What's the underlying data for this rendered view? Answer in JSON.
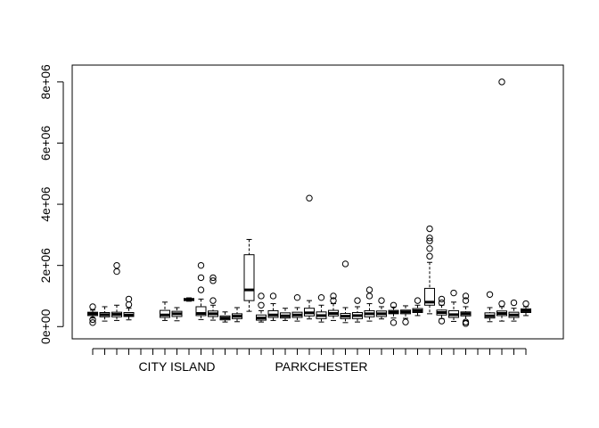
{
  "chart_data": {
    "type": "boxplot",
    "title": "",
    "xlabel": "",
    "ylabel": "",
    "ylim": [
      -400000,
      8550000
    ],
    "y_ticks": [
      0,
      2000000,
      4000000,
      6000000,
      8000000
    ],
    "y_tick_labels": [
      "0e+00",
      "2e+06",
      "4e+06",
      "6e+06",
      "8e+06"
    ],
    "x_tick_labels": [
      "CITY ISLAND",
      "PARKCHESTER"
    ],
    "x_tick_label_positions": [
      8,
      20
    ],
    "n_categories": 34,
    "boxes": [
      {
        "pos": 1,
        "min": 280000,
        "q1": 360000,
        "median": 420000,
        "q3": 470000,
        "max": 540000,
        "outliers": [
          650000,
          230000,
          130000
        ]
      },
      {
        "pos": 2,
        "min": 180000,
        "q1": 320000,
        "median": 390000,
        "q3": 460000,
        "max": 650000,
        "outliers": []
      },
      {
        "pos": 3,
        "min": 200000,
        "q1": 320000,
        "median": 400000,
        "q3": 470000,
        "max": 700000,
        "outliers": [
          1800000,
          2000000
        ]
      },
      {
        "pos": 4,
        "min": 220000,
        "q1": 330000,
        "median": 380000,
        "q3": 460000,
        "max": 600000,
        "outliers": [
          900000,
          720000
        ]
      },
      {
        "pos": 7,
        "min": 200000,
        "q1": 300000,
        "median": 380000,
        "q3": 530000,
        "max": 800000,
        "outliers": []
      },
      {
        "pos": 8,
        "min": 190000,
        "q1": 330000,
        "median": 420000,
        "q3": 500000,
        "max": 620000,
        "outliers": []
      },
      {
        "pos": 9,
        "min": 830000,
        "q1": 850000,
        "median": 880000,
        "q3": 920000,
        "max": 940000,
        "outliers": []
      },
      {
        "pos": 10,
        "min": 230000,
        "q1": 360000,
        "median": 430000,
        "q3": 650000,
        "max": 900000,
        "outliers": [
          1200000,
          1600000,
          2000000
        ]
      },
      {
        "pos": 11,
        "min": 210000,
        "q1": 330000,
        "median": 420000,
        "q3": 510000,
        "max": 700000,
        "outliers": [
          850000,
          1500000,
          1600000
        ]
      },
      {
        "pos": 12,
        "min": 150000,
        "q1": 220000,
        "median": 280000,
        "q3": 350000,
        "max": 480000,
        "outliers": []
      },
      {
        "pos": 13,
        "min": 160000,
        "q1": 260000,
        "median": 340000,
        "q3": 420000,
        "max": 620000,
        "outliers": []
      },
      {
        "pos": 14,
        "min": 500000,
        "q1": 850000,
        "median": 1200000,
        "q3": 2350000,
        "max": 2850000,
        "outliers": []
      },
      {
        "pos": 15,
        "min": 150000,
        "q1": 210000,
        "median": 280000,
        "q3": 380000,
        "max": 520000,
        "outliers": [
          700000,
          1000000
        ]
      },
      {
        "pos": 16,
        "min": 200000,
        "q1": 300000,
        "median": 380000,
        "q3": 520000,
        "max": 750000,
        "outliers": [
          1000000
        ]
      },
      {
        "pos": 17,
        "min": 200000,
        "q1": 280000,
        "median": 350000,
        "q3": 450000,
        "max": 600000,
        "outliers": []
      },
      {
        "pos": 18,
        "min": 180000,
        "q1": 300000,
        "median": 380000,
        "q3": 470000,
        "max": 620000,
        "outliers": [
          950000
        ]
      },
      {
        "pos": 19,
        "min": 250000,
        "q1": 350000,
        "median": 450000,
        "q3": 600000,
        "max": 850000,
        "outliers": [
          4200000
        ]
      },
      {
        "pos": 20,
        "min": 150000,
        "q1": 260000,
        "median": 360000,
        "q3": 480000,
        "max": 700000,
        "outliers": [
          950000
        ]
      },
      {
        "pos": 21,
        "min": 200000,
        "q1": 350000,
        "median": 430000,
        "q3": 530000,
        "max": 750000,
        "outliers": [
          1000000,
          850000
        ]
      },
      {
        "pos": 22,
        "min": 130000,
        "q1": 260000,
        "median": 340000,
        "q3": 430000,
        "max": 620000,
        "outliers": [
          2050000
        ]
      },
      {
        "pos": 23,
        "min": 150000,
        "q1": 260000,
        "median": 360000,
        "q3": 460000,
        "max": 650000,
        "outliers": [
          850000
        ]
      },
      {
        "pos": 24,
        "min": 180000,
        "q1": 320000,
        "median": 420000,
        "q3": 520000,
        "max": 750000,
        "outliers": [
          1000000,
          1200000
        ]
      },
      {
        "pos": 25,
        "min": 250000,
        "q1": 330000,
        "median": 420000,
        "q3": 510000,
        "max": 650000,
        "outliers": [
          850000
        ]
      },
      {
        "pos": 26,
        "min": 280000,
        "q1": 420000,
        "median": 470000,
        "q3": 530000,
        "max": 640000,
        "outliers": [
          700000,
          130000
        ]
      },
      {
        "pos": 27,
        "min": 270000,
        "q1": 420000,
        "median": 480000,
        "q3": 540000,
        "max": 680000,
        "outliers": [
          150000
        ]
      },
      {
        "pos": 28,
        "min": 360000,
        "q1": 460000,
        "median": 520000,
        "q3": 590000,
        "max": 700000,
        "outliers": [
          850000
        ]
      },
      {
        "pos": 29,
        "min": 420000,
        "q1": 700000,
        "median": 800000,
        "q3": 1250000,
        "max": 2100000,
        "outliers": [
          2300000,
          2550000,
          2800000,
          2900000,
          3200000
        ]
      },
      {
        "pos": 30,
        "min": 260000,
        "q1": 380000,
        "median": 460000,
        "q3": 540000,
        "max": 700000,
        "outliers": [
          900000,
          780000,
          180000
        ]
      },
      {
        "pos": 31,
        "min": 170000,
        "q1": 300000,
        "median": 390000,
        "q3": 520000,
        "max": 800000,
        "outliers": [
          1100000
        ]
      },
      {
        "pos": 32,
        "min": 200000,
        "q1": 350000,
        "median": 420000,
        "q3": 480000,
        "max": 650000,
        "outliers": [
          1000000,
          850000,
          150000,
          100000
        ]
      },
      {
        "pos": 34,
        "min": 160000,
        "q1": 280000,
        "median": 350000,
        "q3": 450000,
        "max": 620000,
        "outliers": [
          1050000
        ]
      },
      {
        "pos": 35,
        "min": 180000,
        "q1": 360000,
        "median": 430000,
        "q3": 510000,
        "max": 650000,
        "outliers": [
          750000,
          8000000
        ]
      },
      {
        "pos": 36,
        "min": 180000,
        "q1": 300000,
        "median": 380000,
        "q3": 470000,
        "max": 600000,
        "outliers": [
          780000
        ]
      },
      {
        "pos": 37,
        "min": 360000,
        "q1": 460000,
        "median": 520000,
        "q3": 580000,
        "max": 650000,
        "outliers": [
          750000
        ]
      }
    ],
    "x_range": [
      0,
      38
    ]
  }
}
